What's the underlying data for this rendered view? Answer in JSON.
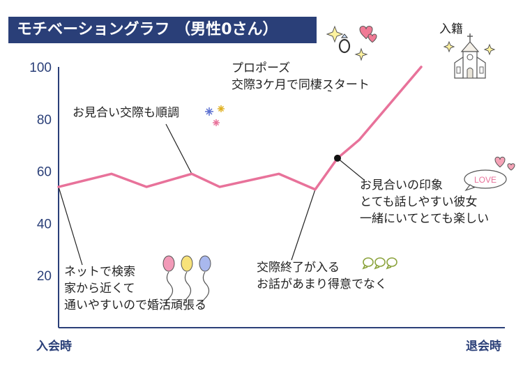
{
  "title": "モチベーショングラフ （男性0さん）",
  "chart_data": {
    "type": "line",
    "title": "モチベーショングラフ （男性0さん）",
    "y_ticks": [
      "100",
      "80",
      "60",
      "40",
      "20"
    ],
    "ylim": [
      0,
      100
    ],
    "x_start_label": "入会時",
    "x_end_label": "退会時",
    "series": [
      {
        "values": [
          54,
          59,
          54,
          59,
          54,
          59,
          53,
          65,
          72,
          100
        ],
        "color": "#e8729a"
      }
    ],
    "marker_index": 7,
    "annotations": [
      {
        "id": "start",
        "lines": [
          "ネットで検索",
          "家から近くて",
          "通いやすいので婚活頑張る"
        ]
      },
      {
        "id": "dating",
        "lines": [
          "お見合い交際も順調"
        ]
      },
      {
        "id": "proposal",
        "lines": [
          "プロポーズ",
          "交際3ケ月で同棲スタート"
        ]
      },
      {
        "id": "end-dating",
        "lines": [
          "交際終了が入る",
          "お話があまり得意でなく"
        ]
      },
      {
        "id": "impression",
        "lines": [
          "お見合いの印象",
          "とても話しやすい彼女",
          "一緒にいてとても楽しい"
        ]
      },
      {
        "id": "marriage",
        "lines": [
          "入籍"
        ]
      }
    ]
  },
  "icons": {
    "balloons": "balloons-icon",
    "fireworks": "fireworks-icon",
    "ring": "ring-hearts-icon",
    "love": "love-bubble-icon",
    "love_text": "LOVE",
    "church": "church-icon",
    "bubbles": "speech-bubbles-icon"
  },
  "colors": {
    "line": "#e8729a",
    "axis": "#2a3f78",
    "title_bg": "#2a3f78",
    "balloon_pink": "#f29ab8",
    "balloon_yellow": "#f7e27a",
    "balloon_blue": "#a9b8ee"
  }
}
